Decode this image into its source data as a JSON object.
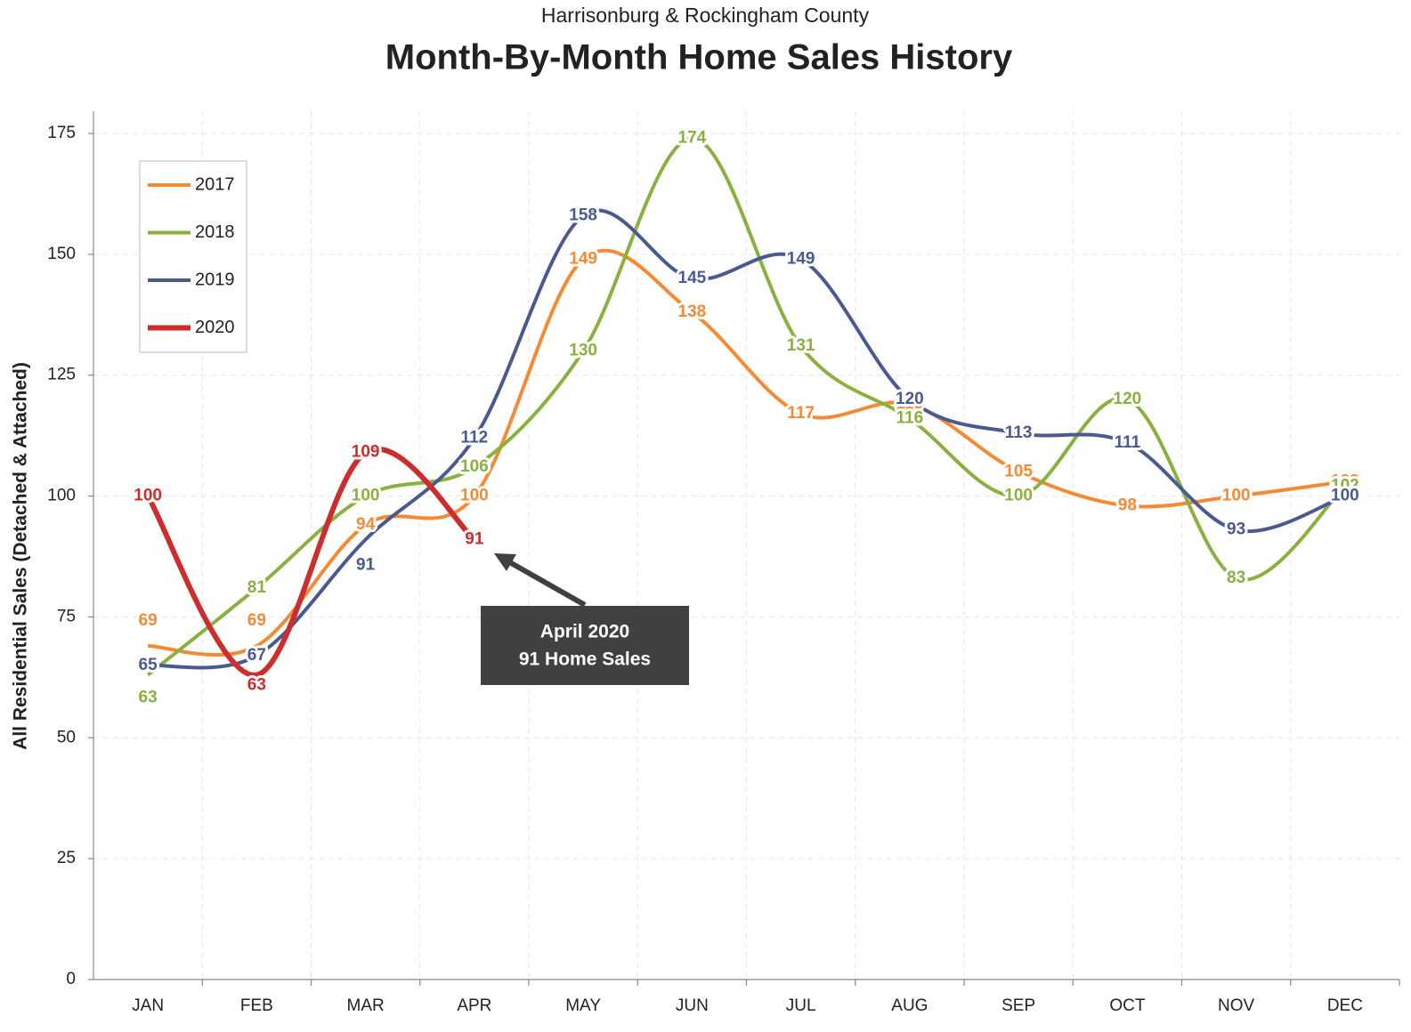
{
  "chart_data": {
    "type": "line",
    "subtitle": "Harrisonburg & Rockingham County",
    "title": "Month-By-Month Home Sales History",
    "y_label": "All Residential Sales (Detached & Attached)",
    "categories": [
      "JAN",
      "FEB",
      "MAR",
      "APR",
      "MAY",
      "JUN",
      "JUL",
      "AUG",
      "SEP",
      "OCT",
      "NOV",
      "DEC"
    ],
    "series": [
      {
        "name": "2017",
        "color": "#f58a35",
        "values": [
          69,
          69,
          94,
          100,
          149,
          138,
          117,
          119,
          105,
          98,
          100,
          103
        ]
      },
      {
        "name": "2018",
        "color": "#8ab040",
        "values": [
          63,
          81,
          100,
          106,
          130,
          174,
          131,
          116,
          100,
          120,
          83,
          102
        ]
      },
      {
        "name": "2019",
        "color": "#4a5a90",
        "values": [
          65,
          67,
          91,
          112,
          158,
          145,
          149,
          120,
          113,
          111,
          93,
          100
        ]
      },
      {
        "name": "2020",
        "color": "#cc2e2e",
        "values": [
          100,
          63,
          109,
          91,
          null,
          null,
          null,
          null,
          null,
          null,
          null,
          null
        ]
      }
    ],
    "ylim": [
      0,
      175
    ],
    "yticks": [
      0,
      25,
      50,
      75,
      100,
      125,
      150,
      175
    ],
    "grid": true,
    "legend": "upper left",
    "annotation": {
      "lines": [
        "April 2020",
        "91 Home Sales"
      ]
    }
  }
}
